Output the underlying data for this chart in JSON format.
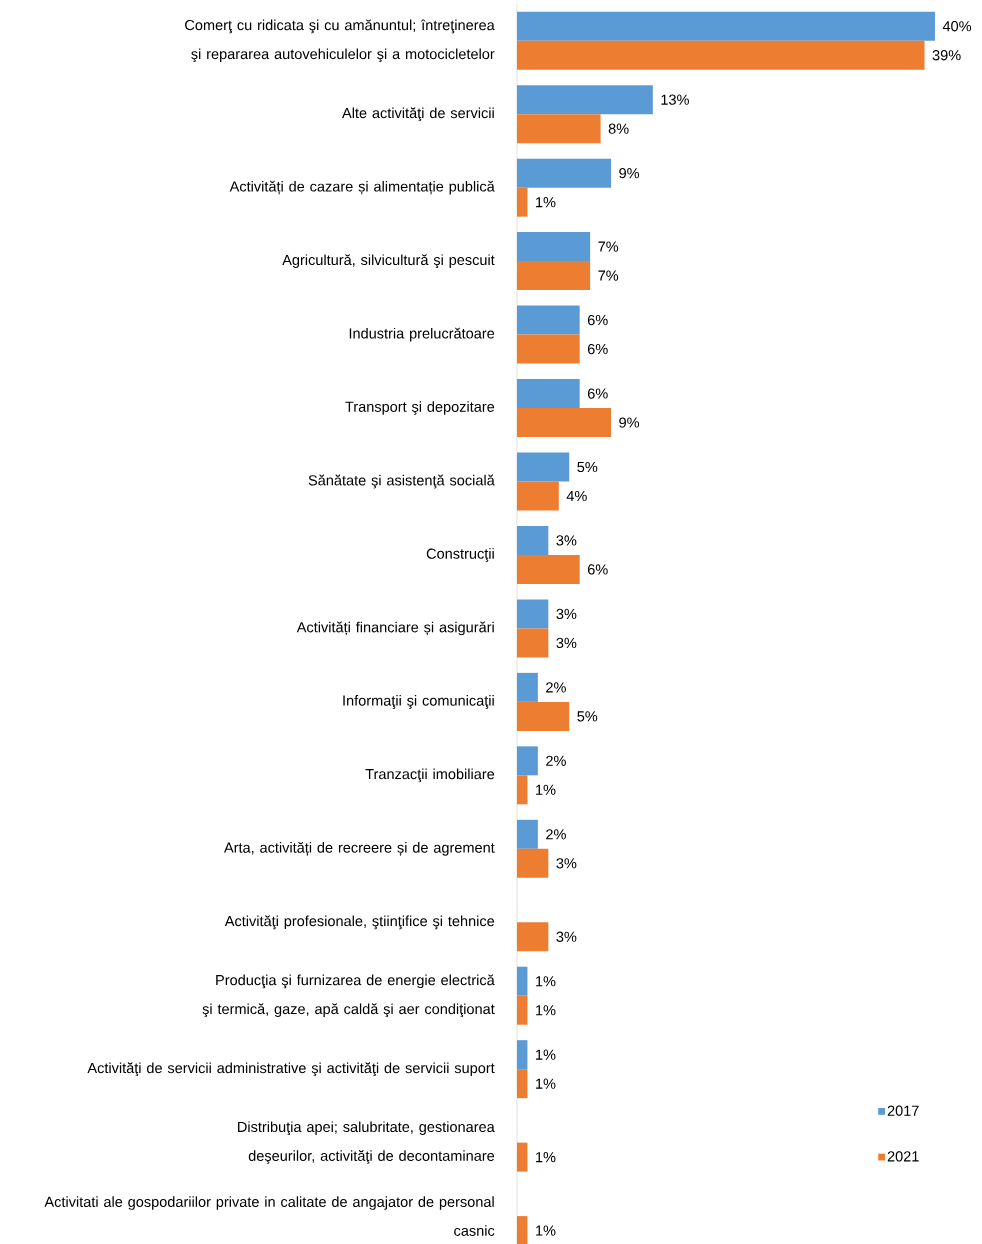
{
  "chart_data": {
    "type": "bar",
    "orientation": "horizontal",
    "categories": [
      "Comerţ cu ridicata şi cu amănuntul; întreţinerea şi repararea autovehiculelor şi a motocicletelor",
      "Alte activităţi de servicii",
      "Activități de cazare și alimentație publică",
      "Agricultură, silvicultură şi pescuit",
      "Industria prelucrătoare",
      "Transport şi depozitare",
      "Sănătate şi asistenţă socială",
      "Construcţii",
      "Activități financiare și asigurări",
      "Informaţii şi comunicaţii",
      "Tranzacţii imobiliare",
      "Arta, activități de recreere și de agrement",
      "Activităţi profesionale, ştiinţifice şi tehnice",
      "Producţia şi furnizarea de energie electrică şi termică, gaze, apă caldă şi aer condiţionat",
      "Activităţi de servicii administrative şi activităţi de servicii suport",
      "Distribuţia apei; salubritate, gestionarea deşeurilor, activităţi de decontaminare",
      "Activitati ale gospodariilor private in calitate de angajator de personal casnic"
    ],
    "series": [
      {
        "name": "2017",
        "color": "#5b9bd5",
        "values": [
          40,
          13,
          9,
          7,
          6,
          6,
          5,
          3,
          3,
          2,
          2,
          2,
          null,
          1,
          1,
          null,
          null
        ],
        "value_labels": [
          "40%",
          "13%",
          "9%",
          "7%",
          "6%",
          "6%",
          "5%",
          "3%",
          "3%",
          "2%",
          "2%",
          "2%",
          null,
          "1%",
          "1%",
          null,
          null
        ]
      },
      {
        "name": "2021",
        "color": "#ed7d31",
        "values": [
          39,
          8,
          1,
          7,
          6,
          9,
          4,
          6,
          3,
          5,
          1,
          3,
          3,
          1,
          1,
          1,
          1
        ],
        "value_labels": [
          "39%",
          "8%",
          "1%",
          "7%",
          "6%",
          "9%",
          "4%",
          "6%",
          "3%",
          "5%",
          "1%",
          "3%",
          "3%",
          "1%",
          "1%",
          "1%",
          "1%"
        ]
      }
    ],
    "legend": "right"
  }
}
